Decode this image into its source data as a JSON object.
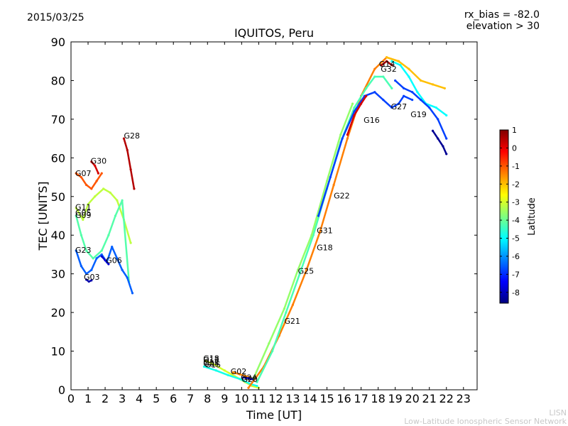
{
  "header": {
    "date": "2015/03/25",
    "rx_bias": "rx_bias = -82.0",
    "elevation": "elevation > 30"
  },
  "footer": {
    "short": "LISN",
    "long": "Low-Latitude Ionospheric Sensor Network"
  },
  "chart_data": {
    "type": "scatter",
    "title": "IQUITOS, Peru",
    "xlabel": "Time [UT]",
    "ylabel": "TEC [UNITS]",
    "xlim": [
      0,
      23.8
    ],
    "ylim": [
      0,
      90
    ],
    "xticks": [
      0,
      1,
      2,
      3,
      4,
      5,
      6,
      7,
      8,
      9,
      10,
      11,
      12,
      13,
      14,
      15,
      16,
      17,
      18,
      19,
      20,
      21,
      22,
      23
    ],
    "yticks": [
      0,
      10,
      20,
      30,
      40,
      50,
      60,
      70,
      80,
      90
    ],
    "colorbar": {
      "label": "Latitude",
      "range": [
        -8.6,
        1.0
      ],
      "ticks": [
        1,
        0,
        -1,
        -2,
        -3,
        -4,
        -5,
        -6,
        -7,
        -8
      ],
      "colors": [
        "#00007f",
        "#0000ff",
        "#007fff",
        "#00ffff",
        "#7fff7f",
        "#ffff00",
        "#ff7f00",
        "#ff0000",
        "#7f0000"
      ]
    },
    "series": [
      {
        "name": "G07",
        "lat": -1.0,
        "x": [
          0.3,
          0.6,
          0.9,
          1.2,
          1.5,
          1.8
        ],
        "y": [
          56,
          55,
          53,
          52,
          54,
          56
        ]
      },
      {
        "name": "G30",
        "lat": 0.2,
        "x": [
          1.2,
          1.4,
          1.6
        ],
        "y": [
          59,
          58,
          56
        ]
      },
      {
        "name": "G28",
        "lat": 0.5,
        "x": [
          3.1,
          3.3,
          3.5,
          3.7
        ],
        "y": [
          65,
          62,
          57,
          52
        ]
      },
      {
        "name": "G11",
        "lat": -3.2,
        "x": [
          0.3,
          0.7,
          1.0,
          1.4,
          1.9,
          2.3,
          2.7,
          3.1,
          3.5
        ],
        "y": [
          47,
          44,
          48,
          50,
          52,
          51,
          49,
          44,
          38
        ]
      },
      {
        "name": "G09",
        "lat": -4.2,
        "x": [
          0.3,
          0.6,
          0.9,
          1.3,
          1.8,
          2.2,
          2.6,
          3.0,
          3.4
        ],
        "y": [
          45,
          40,
          36,
          34,
          36,
          40,
          45,
          49,
          28
        ]
      },
      {
        "name": "G23",
        "lat": -6.5,
        "x": [
          0.3,
          0.6,
          0.9,
          1.2,
          1.5,
          1.8,
          2.1,
          2.4,
          2.7,
          3.0,
          3.3,
          3.6
        ],
        "y": [
          36,
          32,
          30,
          31,
          34,
          35,
          33,
          37,
          34,
          31,
          29,
          25
        ]
      },
      {
        "name": "G03",
        "lat": -8.2,
        "x": [
          0.9,
          1.05,
          1.2
        ],
        "y": [
          28.5,
          28,
          28.3
        ]
      },
      {
        "name": "G06",
        "lat": -7.8,
        "x": [
          1.8,
          2.0,
          2.2
        ],
        "y": [
          34.5,
          33.5,
          32.5
        ]
      },
      {
        "name": "G13",
        "lat": -3.0,
        "x": [
          7.9,
          8.4,
          9.0,
          9.6,
          10.2,
          10.6,
          11.0
        ],
        "y": [
          7.5,
          6.5,
          5,
          3.5,
          2,
          1,
          0.5
        ]
      },
      {
        "name": "G05",
        "lat": -4.8,
        "x": [
          7.8,
          8.5,
          9.2,
          9.9,
          10.5,
          10.9
        ],
        "y": [
          6,
          5,
          3.8,
          2.8,
          1.5,
          1
        ]
      },
      {
        "name": "G02",
        "lat": -1.5,
        "x": [
          9.5,
          9.9,
          10.2,
          10.5
        ],
        "y": [
          4.5,
          4,
          3.6,
          3.2
        ]
      },
      {
        "name": "G24",
        "lat": -8.0,
        "x": [
          10.1,
          10.4,
          10.7
        ],
        "y": [
          3.2,
          3.0,
          2.6
        ]
      },
      {
        "name": "G21",
        "lat": -1.4,
        "x": [
          10.4,
          11.3,
          12.2,
          13.0,
          13.8,
          14.6,
          15.4,
          16.2,
          17.0,
          17.8,
          18.5,
          19.2
        ],
        "y": [
          0.5,
          6,
          14,
          22,
          31,
          41,
          53,
          65,
          76,
          83,
          86,
          85
        ]
      },
      {
        "name": "G25",
        "lat": -4.3,
        "x": [
          10.9,
          11.8,
          12.6,
          13.4,
          14.2,
          15.0,
          15.8,
          16.6,
          17.3,
          17.8,
          18.3,
          18.8
        ],
        "y": [
          2,
          10,
          20,
          30,
          40,
          52,
          64,
          73,
          78,
          81,
          81,
          78
        ]
      },
      {
        "name": "G18",
        "lat": -3.6,
        "x": [
          10.7,
          11.6,
          12.5,
          13.3,
          14.1,
          15.0,
          15.8,
          16.5
        ],
        "y": [
          3,
          12,
          21,
          31,
          40,
          54,
          66,
          74
        ]
      },
      {
        "name": "G31",
        "lat": -6.8,
        "x": [
          14.5,
          15.2,
          15.9,
          16.6,
          17.2,
          17.8,
          18.3,
          18.8,
          19.2,
          19.5,
          20.0
        ],
        "y": [
          45,
          55,
          65,
          72,
          76,
          77,
          75,
          73,
          74,
          76,
          75
        ]
      },
      {
        "name": "G16",
        "lat": 0.2,
        "x": [
          16.2,
          16.6,
          17.0,
          17.3
        ],
        "y": [
          66,
          71,
          74,
          76
        ]
      },
      {
        "name": "G14",
        "lat": 0.6,
        "x": [
          18.2,
          18.5,
          18.8
        ],
        "y": [
          84,
          85,
          84
        ]
      },
      {
        "name": "G32",
        "lat": -2.0,
        "x": [
          18.5,
          19.2,
          19.8,
          20.5,
          21.2,
          21.9
        ],
        "y": [
          86,
          85,
          83,
          80,
          79,
          78
        ]
      },
      {
        "name": "G27",
        "lat": -5.0,
        "x": [
          18.8,
          19.3,
          19.8,
          20.3,
          20.8,
          21.4,
          22.0
        ],
        "y": [
          85,
          84,
          81,
          77,
          74,
          73,
          71
        ]
      },
      {
        "name": "G19",
        "lat": -6.8,
        "x": [
          19.0,
          19.5,
          20.0,
          20.5,
          21.0,
          21.5,
          22.0
        ],
        "y": [
          80,
          78,
          77,
          75,
          73,
          70,
          65
        ]
      },
      {
        "name": "G22",
        "lat": -8.4,
        "x": [
          21.2,
          21.5,
          21.8,
          22.0
        ],
        "y": [
          67,
          65,
          63,
          61
        ]
      }
    ],
    "annotations": [
      {
        "text": "G07",
        "x": 0.25,
        "y": 56
      },
      {
        "text": "G30",
        "x": 1.15,
        "y": 59.2
      },
      {
        "text": "G28",
        "x": 3.1,
        "y": 65.8
      },
      {
        "text": "G11",
        "x": 0.25,
        "y": 47.3
      },
      {
        "text": "G09",
        "x": 0.25,
        "y": 45.2
      },
      {
        "text": "G05",
        "x": 0.25,
        "y": 45.8
      },
      {
        "text": "G23",
        "x": 0.25,
        "y": 36.2
      },
      {
        "text": "G03",
        "x": 0.75,
        "y": 29.2
      },
      {
        "text": "G06",
        "x": 2.05,
        "y": 33.5
      },
      {
        "text": "G18",
        "x": 7.75,
        "y": 8.2
      },
      {
        "text": "G13",
        "x": 7.75,
        "y": 7.8
      },
      {
        "text": "G15",
        "x": 7.85,
        "y": 6.5
      },
      {
        "text": "G12",
        "x": 7.75,
        "y": 7.2
      },
      {
        "text": "G05",
        "x": 7.75,
        "y": 6.8
      },
      {
        "text": "G02",
        "x": 9.35,
        "y": 4.8
      },
      {
        "text": "G24",
        "x": 9.95,
        "y": 3.2
      },
      {
        "text": "G20",
        "x": 10.0,
        "y": 2.8
      },
      {
        "text": "G21",
        "x": 12.5,
        "y": 17.8
      },
      {
        "text": "G25",
        "x": 13.3,
        "y": 30.8
      },
      {
        "text": "G18",
        "x": 14.4,
        "y": 36.8
      },
      {
        "text": "G31",
        "x": 14.4,
        "y": 41.2
      },
      {
        "text": "G22",
        "x": 15.4,
        "y": 50.2
      },
      {
        "text": "G16",
        "x": 17.15,
        "y": 69.8
      },
      {
        "text": "G14",
        "x": 18.05,
        "y": 84.3
      },
      {
        "text": "G32",
        "x": 18.15,
        "y": 83.0
      },
      {
        "text": "G27",
        "x": 18.75,
        "y": 73.3
      },
      {
        "text": "G19",
        "x": 19.9,
        "y": 71.3
      }
    ]
  }
}
